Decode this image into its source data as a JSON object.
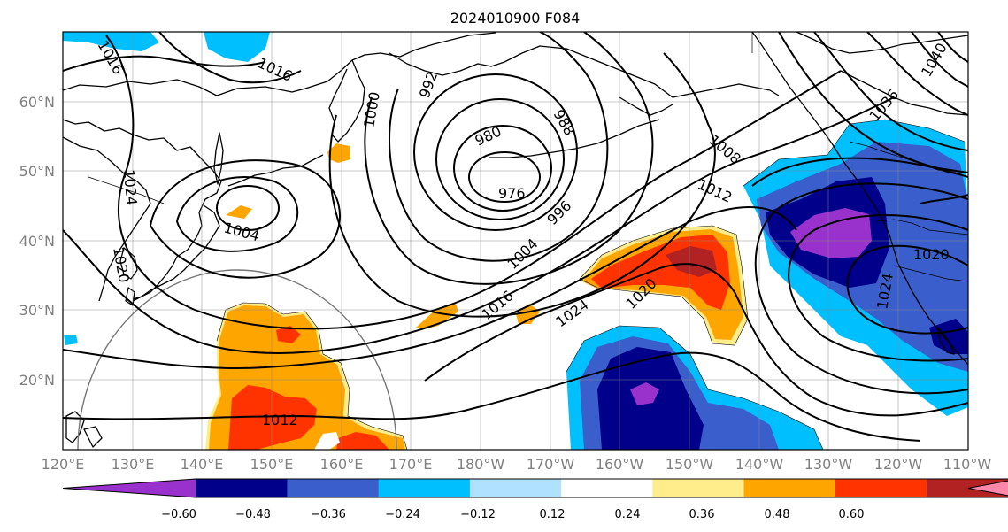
{
  "title": "2024010900 F084",
  "lat_labels": [
    "60°N",
    "50°N",
    "40°N",
    "30°N",
    "20°N"
  ],
  "lon_labels": [
    "120°E",
    "130°E",
    "140°E",
    "150°E",
    "160°E",
    "170°E",
    "180°W",
    "170°W",
    "160°W",
    "150°W",
    "140°W",
    "130°W",
    "120°W",
    "110°W"
  ],
  "pressure_labels": [
    {
      "text": "976"
    },
    {
      "text": "980"
    },
    {
      "text": "988"
    },
    {
      "text": "992"
    },
    {
      "text": "996"
    },
    {
      "text": "1000"
    },
    {
      "text": "1004"
    },
    {
      "text": "1004"
    },
    {
      "text": "1008"
    },
    {
      "text": "1012"
    },
    {
      "text": "1012"
    },
    {
      "text": "1016"
    },
    {
      "text": "1016"
    },
    {
      "text": "1016"
    },
    {
      "text": "1020"
    },
    {
      "text": "1020"
    },
    {
      "text": "1020"
    },
    {
      "text": "1024"
    },
    {
      "text": "1024"
    },
    {
      "text": "1024"
    },
    {
      "text": "1036"
    },
    {
      "text": "1040"
    }
  ],
  "colorbar": {
    "colors": [
      "#9932CC",
      "#00008B",
      "#3A5FCD",
      "#00BFFF",
      "#B0E2FF",
      "#FFFFFF",
      "#FFEC8B",
      "#FFA500",
      "#FF3300",
      "#B22222",
      "#FF88AA"
    ],
    "tick_labels": [
      "−0.60",
      "−0.48",
      "−0.36",
      "−0.24",
      "−0.12",
      "0.12",
      "0.24",
      "0.36",
      "0.48",
      "0.60"
    ]
  },
  "anomaly_colors": {
    "deep_purple": "#9932CC",
    "navy": "#00008B",
    "blue": "#3A5FCD",
    "sky": "#00BFFF",
    "yellow": "#FFEC8B",
    "orange": "#FFA500",
    "red_orange": "#FF3300",
    "dark_red": "#B22222"
  }
}
